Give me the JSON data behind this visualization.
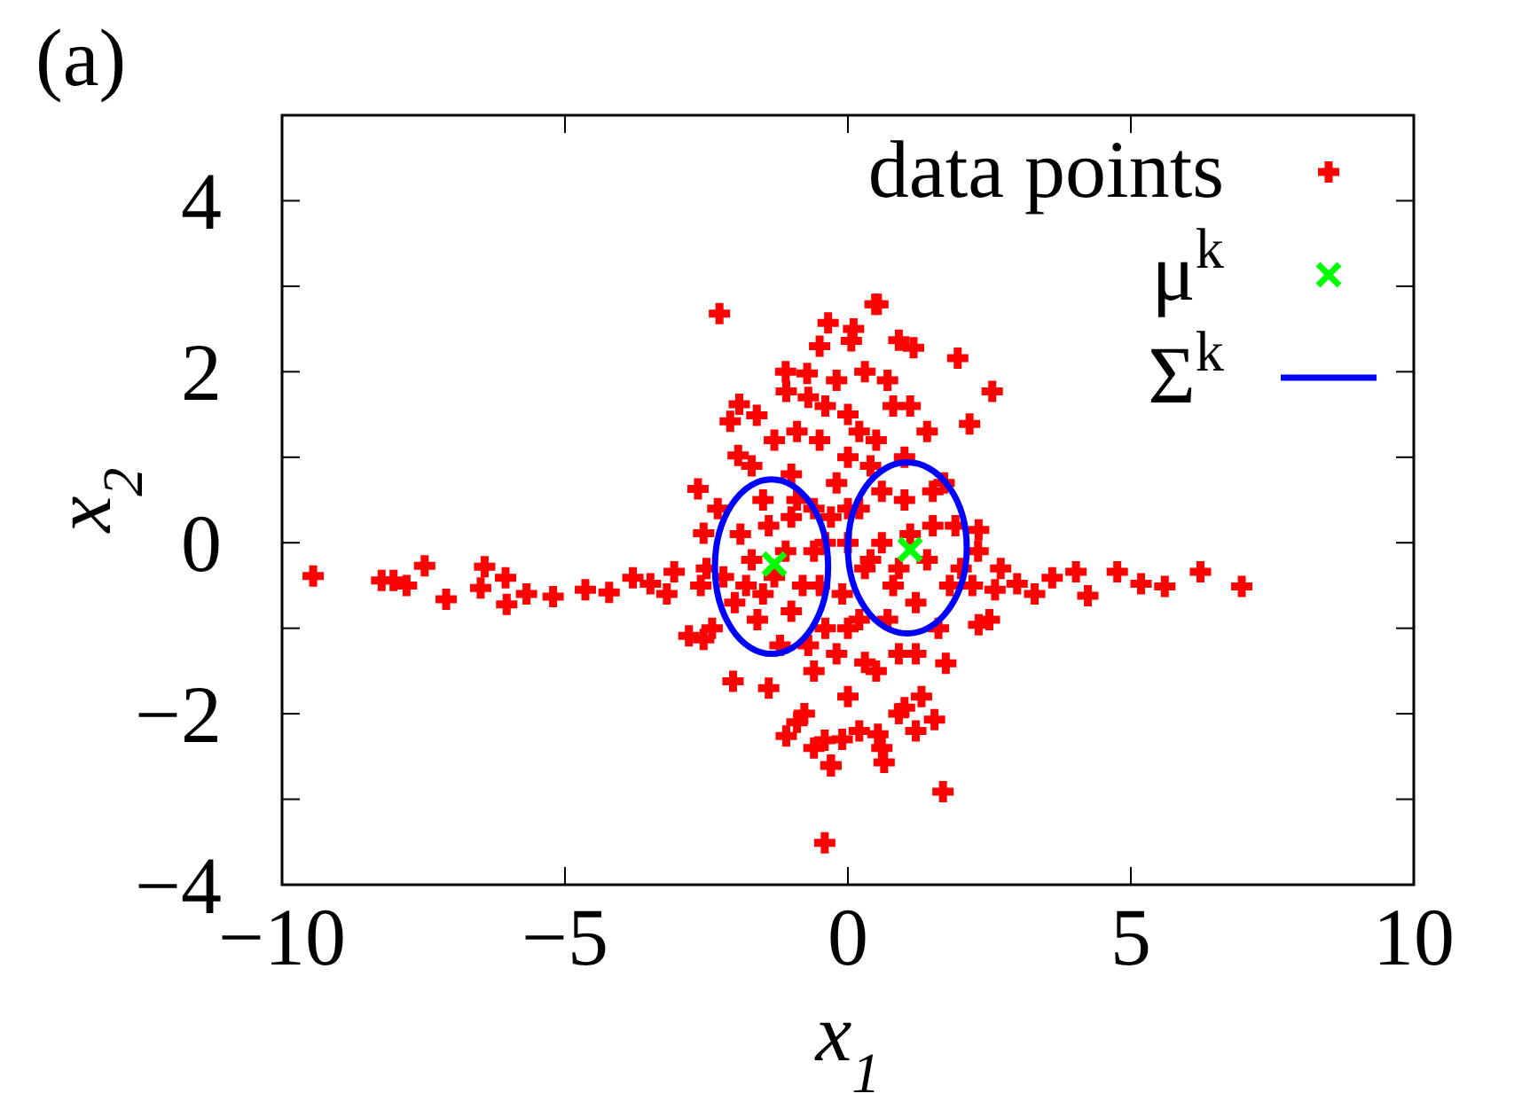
{
  "chart_data": {
    "type": "scatter",
    "title": "(a)",
    "xlabel": "x$_{1}$",
    "ylabel": "x$_{2}$",
    "xlim": [
      -10,
      10
    ],
    "xticks": [
      {
        "value": -10,
        "label": "−10"
      },
      {
        "value": -5,
        "label": "−5"
      },
      0,
      5,
      10
    ],
    "ylim": [
      -4,
      5
    ],
    "yticks": [
      {
        "value": -4,
        "label": "−4"
      },
      {
        "value": -3,
        "label": null
      },
      {
        "value": -2,
        "label": "−2"
      },
      {
        "value": -1,
        "label": null
      },
      0,
      {
        "value": 1,
        "label": null
      },
      2,
      {
        "value": 3,
        "label": null
      },
      4
    ],
    "legend": "top right",
    "series": [
      {
        "name": "data points",
        "marker": "plus",
        "color": "#ff0000",
        "x": [
          -9.45,
          -8.24,
          -8.03,
          -7.8,
          -7.48,
          -7.1,
          -6.42,
          -6.49,
          -6.05,
          -6.03,
          -5.68,
          -5.21,
          -4.64,
          -4.22,
          -3.8,
          -3.49,
          -3.07,
          -2.65,
          -2.55,
          -2.81,
          -2.55,
          -2.27,
          -1.92,
          -2.08,
          -1.94,
          -2.03,
          -1.09,
          -0.41,
          -0.3,
          -0.35,
          0.06,
          0.48,
          -0.72,
          -1.09,
          -1.61,
          -0.77,
          -0.41,
          0.53,
          0.9,
          1.16,
          1.94,
          2.55,
          2.15,
          2.31,
          2.99,
          3.61,
          4.03,
          4.24,
          4.76,
          5.18,
          5.6,
          6.23,
          6.96,
          1.68,
          0.64,
          1.53,
          2.31,
          1.73,
          0.53,
          1.0,
          -1.5,
          -1.0,
          -0.5,
          0,
          0.5,
          1.0,
          1.5,
          -1.2,
          -0.6,
          0,
          0.5,
          1.2,
          -0.3,
          0.3,
          0,
          -0.8,
          0.8,
          -1.8,
          1.8,
          -2.2,
          2.2,
          -2.6,
          2.6,
          -0.2,
          0.3,
          -0.7,
          0.8,
          -1.3,
          1.4,
          -1.9,
          1.9,
          -1.6,
          1.6,
          -0.9,
          0.2,
          0.9,
          -0.4,
          0.6,
          -0.6,
          1.1,
          -1.1,
          0,
          0,
          -0.3,
          -2.4,
          2.5,
          -1.4,
          1.3,
          0.4,
          -0.1,
          -2.0,
          2.0,
          -0.5,
          0.1,
          -1.7,
          1.7,
          -2.3,
          2.3,
          -1.4,
          -1.0,
          -0.6,
          -0.2,
          0.2,
          0.6,
          1.0,
          1.4,
          -1.5,
          -1.0,
          -0.5,
          0.2,
          0.7,
          1.2,
          -1.3,
          -0.2,
          0.3,
          -0.7,
          0.9,
          -0.9,
          0.2,
          0.7,
          -0.4,
          1.1,
          -1.1,
          0.4,
          -0.4,
          0.0,
          0.9,
          -0.9,
          1.5,
          -1.7,
          -2.5,
          2.7,
          -3.2,
          3.3,
          -0.1,
          0.6,
          -0.6,
          1.2
        ],
        "values": [
          -0.39,
          -0.44,
          -0.44,
          -0.5,
          -0.27,
          -0.66,
          -0.28,
          -0.53,
          -0.41,
          -0.72,
          -0.6,
          -0.63,
          -0.55,
          -0.58,
          -0.41,
          -0.48,
          -0.34,
          0.63,
          0.11,
          -1.09,
          -1.13,
          2.68,
          1.62,
          1.42,
          1.02,
          -1.62,
          -2.26,
          -3.51,
          -2.61,
          2.57,
          2.36,
          2.79,
          1.98,
          1.77,
          1.49,
          -2.0,
          -2.31,
          2.79,
          2.37,
          2.28,
          2.16,
          1.77,
          1.39,
          0.15,
          -0.48,
          -0.41,
          -0.34,
          -0.62,
          -0.34,
          -0.48,
          -0.51,
          -0.34,
          -0.51,
          -2.91,
          -2.57,
          -2.07,
          -0.96,
          -1.41,
          -2.24,
          -1.93,
          0.5,
          0.8,
          1.2,
          1.5,
          1.2,
          1.0,
          0.6,
          -1.2,
          -1.5,
          -1.8,
          -1.5,
          -1.3,
          0.3,
          -0.3,
          0,
          -0.5,
          -0.5,
          -0.5,
          -0.5,
          -0.4,
          -0.5,
          -0.5,
          -0.55,
          1.9,
          2.0,
          1.7,
          1.6,
          1.2,
          1.3,
          0.1,
          0.2,
          -0.9,
          -1.0,
          -2.1,
          -2.2,
          -2.0,
          -1.0,
          0.6,
          0.4,
          0.1,
          -0.1,
          -1.0,
          1.0,
          -2.6,
          -1.0,
          -0.9,
          -1.7,
          -1.8,
          0.9,
          -0.6,
          -0.7,
          -0.3,
          2.3,
          2.5,
          0.9,
          0.7,
          0.4,
          -0.1,
          0.2,
          0.3,
          -0.1,
          0.7,
          0.4,
          0.0,
          0.5,
          -0.2,
          -0.6,
          -0.8,
          -0.5,
          -0.9,
          -0.9,
          -0.7,
          -0.4,
          -1.3,
          -1.4,
          -1.2,
          -1.3,
          1.3,
          1.3,
          1.9,
          1.6,
          1.6,
          2.0,
          -0.2,
          0.0,
          0.4,
          -0.3,
          0.5,
          0.2,
          -0.2,
          -0.3,
          -0.3,
          -0.6,
          -0.6,
          -2.3,
          -2.4,
          -2.4,
          -2.2
        ]
      },
      {
        "name": "μ$^{k}$",
        "marker": "cross",
        "color": "#00ff00",
        "x": [
          -1.3,
          1.1
        ],
        "values": [
          -0.25,
          -0.08
        ]
      },
      {
        "name": "Σ$^{k}$",
        "type": "line",
        "color": "#0000ff"
      }
    ]
  }
}
